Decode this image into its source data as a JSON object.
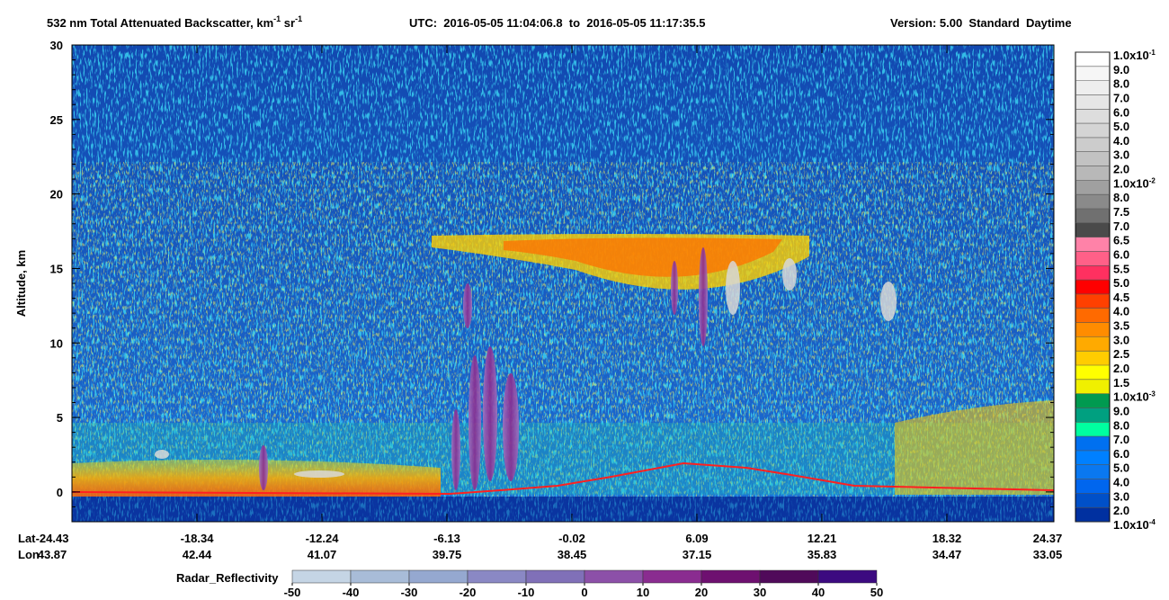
{
  "chart_data": {
    "type": "heatmap",
    "title": {
      "text": "532 nm Total Attenuated Backscatter, km",
      "exp1": "-1",
      "unit2": " sr",
      "exp2": "-1"
    },
    "utc": "UTC:  2016-05-05 11:04:06.8  to  2016-05-05 11:17:35.5",
    "version": "Version: 5.00  Standard  Daytime",
    "ylabel": "Altitude, km",
    "ylim": [
      -2,
      30
    ],
    "yticks": [
      0,
      5,
      10,
      15,
      20,
      25,
      30
    ],
    "x_row_labels": [
      "Lat",
      "Lon"
    ],
    "lat": [
      -24.43,
      -18.34,
      -12.24,
      -6.13,
      -0.02,
      6.09,
      12.21,
      18.32,
      24.37
    ],
    "lon": [
      43.87,
      42.44,
      41.07,
      39.75,
      38.45,
      37.15,
      35.83,
      34.47,
      33.05
    ],
    "colorbar": {
      "labels": [
        {
          "text": "1.0x10",
          "exp": "-1"
        },
        {
          "text": "9.0"
        },
        {
          "text": "8.0"
        },
        {
          "text": "7.0"
        },
        {
          "text": "6.0"
        },
        {
          "text": "5.0"
        },
        {
          "text": "4.0"
        },
        {
          "text": "3.0"
        },
        {
          "text": "2.0"
        },
        {
          "text": "1.0x10",
          "exp": "-2"
        },
        {
          "text": "8.0"
        },
        {
          "text": "7.5"
        },
        {
          "text": "7.0"
        },
        {
          "text": "6.5"
        },
        {
          "text": "6.0"
        },
        {
          "text": "5.5"
        },
        {
          "text": "5.0"
        },
        {
          "text": "4.5"
        },
        {
          "text": "4.0"
        },
        {
          "text": "3.5"
        },
        {
          "text": "3.0"
        },
        {
          "text": "2.5"
        },
        {
          "text": "2.0"
        },
        {
          "text": "1.5"
        },
        {
          "text": "1.0x10",
          "exp": "-3"
        },
        {
          "text": "9.0"
        },
        {
          "text": "8.0"
        },
        {
          "text": "7.0"
        },
        {
          "text": "6.0"
        },
        {
          "text": "5.0"
        },
        {
          "text": "4.0"
        },
        {
          "text": "3.0"
        },
        {
          "text": "2.0"
        },
        {
          "text": "1.0x10",
          "exp": "-4"
        }
      ],
      "colors": [
        "#ffffff",
        "#f6f6f6",
        "#eeeeee",
        "#e6e6e6",
        "#dddddd",
        "#d4d4d4",
        "#cccccc",
        "#c2c2c2",
        "#b8b8b8",
        "#a0a0a0",
        "#8a8a8a",
        "#707070",
        "#4a4a4a",
        "#ff82a8",
        "#ff6088",
        "#ff3060",
        "#ff0000",
        "#ff4000",
        "#ff6a00",
        "#ff8c00",
        "#ffaa00",
        "#ffcc00",
        "#ffff00",
        "#f0f000",
        "#009a50",
        "#00a080",
        "#00ffa0",
        "#0070f0",
        "#0080ff",
        "#0a78f0",
        "#0066ee",
        "#0050c8",
        "#0030a0"
      ]
    },
    "radar_colorbar": {
      "label": "Radar_Reflectivity",
      "ticks": [
        -50,
        -40,
        -30,
        -20,
        -10,
        0,
        10,
        20,
        30,
        40,
        50
      ],
      "colors": [
        "#c5d5e5",
        "#a8bcd8",
        "#95a8d0",
        "#8a88c4",
        "#8070b8",
        "#8c50a8",
        "#8a2c90",
        "#6e1070",
        "#500a5a",
        "#3c0a80"
      ]
    }
  }
}
